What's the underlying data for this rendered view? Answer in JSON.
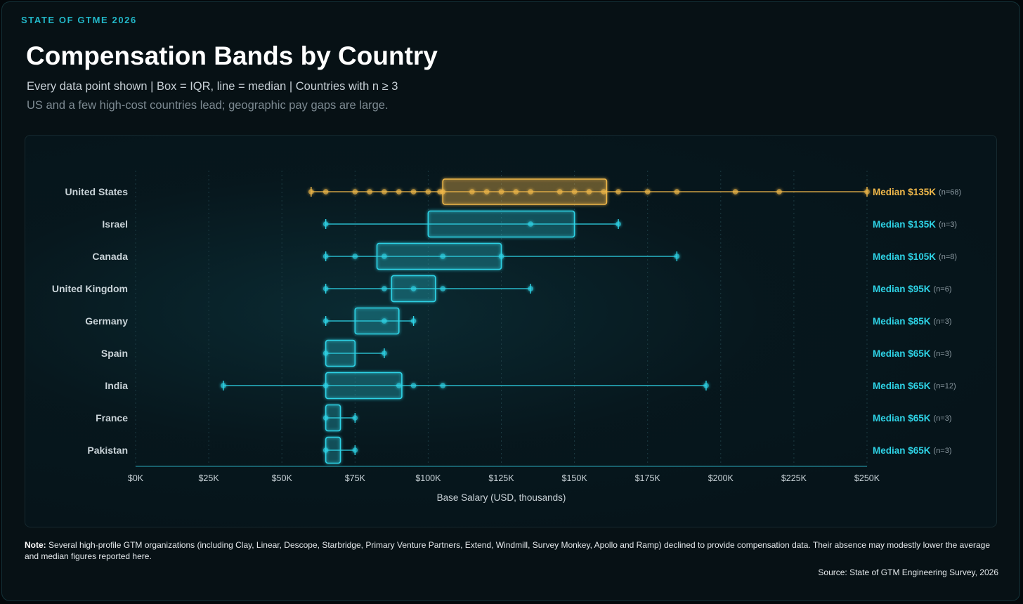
{
  "header": {
    "eyebrow": "STATE OF GTME 2026",
    "title": "Compensation Bands by Country",
    "subtitle": "Every data point shown | Box = IQR, line = median | Countries with n ≥ 3",
    "tagline": "US and a few high-cost countries lead; geographic pay gaps are large."
  },
  "colors": {
    "highlight": "#f0b84a",
    "series": "#2ed3e6",
    "axis": "#1f7886",
    "label": "#c9d3d8",
    "muted": "#8c9aa2"
  },
  "chart_data": {
    "type": "box",
    "title": "Compensation Bands by Country",
    "xlabel": "Base Salary (USD, thousands)",
    "xlim": [
      0,
      250
    ],
    "xticks": [
      0,
      25,
      50,
      75,
      100,
      125,
      150,
      175,
      200,
      225,
      250
    ],
    "xtick_labels": [
      "$0K",
      "$25K",
      "$50K",
      "$75K",
      "$100K",
      "$125K",
      "$150K",
      "$175K",
      "$200K",
      "$225K",
      "$250K"
    ],
    "series": [
      {
        "name": "United States",
        "highlight": true,
        "min": 60,
        "q1": 105,
        "median": 135,
        "q3": 161,
        "max": 250,
        "points": [
          60,
          65,
          75,
          80,
          85,
          90,
          95,
          100,
          104,
          105,
          115,
          120,
          125,
          130,
          135,
          145,
          150,
          155,
          160,
          165,
          175,
          185,
          205,
          220,
          250
        ],
        "median_label": "Median $135K",
        "n_label": "(n=68)"
      },
      {
        "name": "Israel",
        "min": 65,
        "q1": 100,
        "median": 135,
        "q3": 150,
        "max": 165,
        "points": [
          65,
          135,
          165
        ],
        "median_label": "Median $135K",
        "n_label": "(n=3)"
      },
      {
        "name": "Canada",
        "min": 65,
        "q1": 82.5,
        "median": 105,
        "q3": 125,
        "max": 185,
        "points": [
          65,
          75,
          85,
          105,
          125,
          185
        ],
        "median_label": "Median $105K",
        "n_label": "(n=8)"
      },
      {
        "name": "United Kingdom",
        "min": 65,
        "q1": 87.5,
        "median": 95,
        "q3": 102.5,
        "max": 135,
        "points": [
          65,
          85,
          95,
          105,
          135
        ],
        "median_label": "Median $95K",
        "n_label": "(n=6)"
      },
      {
        "name": "Germany",
        "min": 65,
        "q1": 75,
        "median": 85,
        "q3": 90,
        "max": 95,
        "points": [
          65,
          85,
          95
        ],
        "median_label": "Median $85K",
        "n_label": "(n=3)"
      },
      {
        "name": "Spain",
        "min": 65,
        "q1": 65,
        "median": 65,
        "q3": 75,
        "max": 85,
        "points": [
          65,
          85
        ],
        "median_label": "Median $65K",
        "n_label": "(n=3)"
      },
      {
        "name": "India",
        "min": 30,
        "q1": 65,
        "median": 65,
        "q3": 91,
        "max": 195,
        "points": [
          30,
          65,
          90,
          95,
          105,
          195
        ],
        "median_label": "Median $65K",
        "n_label": "(n=12)"
      },
      {
        "name": "France",
        "min": 65,
        "q1": 65,
        "median": 65,
        "q3": 70,
        "max": 75,
        "points": [
          65,
          75
        ],
        "median_label": "Median $65K",
        "n_label": "(n=3)"
      },
      {
        "name": "Pakistan",
        "min": 65,
        "q1": 65,
        "median": 65,
        "q3": 70,
        "max": 75,
        "points": [
          65,
          75
        ],
        "median_label": "Median $65K",
        "n_label": "(n=3)"
      }
    ]
  },
  "footer": {
    "note_label": "Note:",
    "note_text": "Several high-profile GTM organizations (including Clay, Linear, Descope, Starbridge, Primary Venture Partners, Extend, Windmill, Survey Monkey, Apollo and Ramp) declined to provide compensation data. Their absence may modestly lower the average and median figures reported here.",
    "source": "Source: State of GTM Engineering Survey, 2026"
  }
}
